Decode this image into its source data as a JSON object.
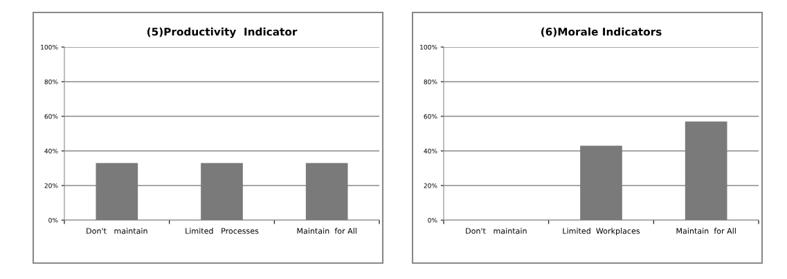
{
  "chart_data": [
    {
      "type": "bar",
      "title": "(5)Productivity  Indicator",
      "categories": [
        "Don't   maintain",
        "Limited   Processes",
        "Maintain  for All"
      ],
      "values": [
        33,
        33,
        33
      ],
      "color": "#7a7a7a",
      "ylim": [
        0,
        100
      ],
      "yticks": [
        {
          "value": 0,
          "label": "0%"
        },
        {
          "value": 20,
          "label": "20%"
        },
        {
          "value": 40,
          "label": "40%"
        },
        {
          "value": 60,
          "label": "60%"
        },
        {
          "value": 80,
          "label": "80%"
        },
        {
          "value": 100,
          "label": "100%"
        }
      ],
      "grid": "y"
    },
    {
      "type": "bar",
      "title": "(6)Morale Indicators",
      "categories": [
        "Don't   maintain",
        "Limited  Workplaces",
        "Maintain  for All"
      ],
      "values": [
        0,
        43,
        57
      ],
      "color": "#7a7a7a",
      "ylim": [
        0,
        100
      ],
      "yticks": [
        {
          "value": 0,
          "label": "0%"
        },
        {
          "value": 20,
          "label": "20%"
        },
        {
          "value": 40,
          "label": "40%"
        },
        {
          "value": 60,
          "label": "60%"
        },
        {
          "value": 80,
          "label": "80%"
        },
        {
          "value": 100,
          "label": "100%"
        }
      ],
      "grid": "y"
    }
  ]
}
